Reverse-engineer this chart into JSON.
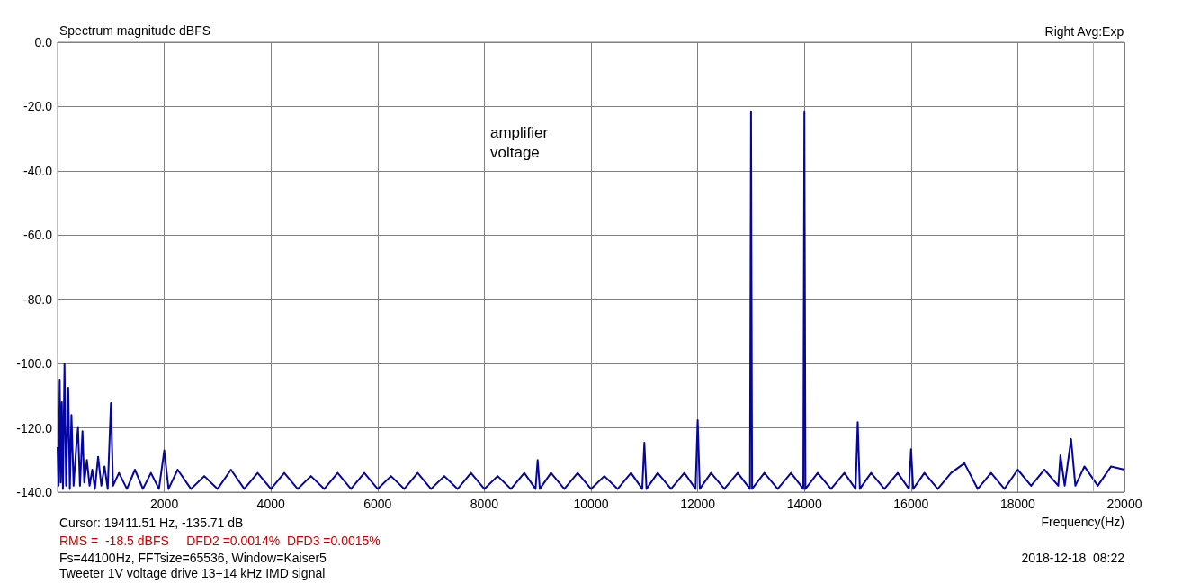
{
  "chart_data": {
    "type": "line",
    "ylabel": "Spectrum magnitude dBFS",
    "xlabel": "Frequency(Hz)",
    "annotations": [
      "Right Avg:Exp",
      "amplifier\nvoltage",
      "Cursor: 19411.51 Hz, -135.71 dB",
      "RMS =  -18.5 dBFS     DFD2 =0.0014%  DFD3 =0.0015%",
      "Fs=44100Hz, FFTsize=65536, Window=Kaiser5",
      "Tweeter 1V voltage drive 13+14 kHz IMD signal",
      "2018-12-18  08:22"
    ],
    "x": [
      0,
      20,
      40,
      60,
      80,
      100,
      130,
      160,
      200,
      230,
      260,
      300,
      350,
      383,
      420,
      467,
      500,
      550,
      600,
      650,
      700,
      760,
      820,
      880,
      940,
      1000,
      1040,
      1150,
      1300,
      1450,
      1600,
      1750,
      1900,
      2000,
      2080,
      2250,
      2500,
      2750,
      3000,
      3250,
      3500,
      3750,
      4000,
      4250,
      4500,
      4750,
      5000,
      5250,
      5500,
      5750,
      6000,
      6250,
      6500,
      6750,
      7000,
      7250,
      7500,
      7750,
      8000,
      8250,
      8500,
      8750,
      8960,
      9000,
      9040,
      9250,
      9500,
      9750,
      10000,
      10250,
      10500,
      10750,
      10960,
      11000,
      11040,
      11250,
      11500,
      11750,
      11960,
      12000,
      12040,
      12250,
      12500,
      12750,
      12980,
      13000,
      13020,
      13250,
      13500,
      13750,
      13980,
      14000,
      14020,
      14250,
      14500,
      14750,
      14960,
      15000,
      15040,
      15250,
      15500,
      15750,
      15960,
      16000,
      16040,
      16250,
      16500,
      16750,
      17000,
      17250,
      17500,
      17750,
      18000,
      18250,
      18500,
      18760,
      18800,
      18880,
      19000,
      19080,
      19250,
      19500,
      19750,
      20000
    ],
    "series": [
      {
        "color": "#0505a0",
        "values": [
          -126,
          -138,
          -105,
          -137,
          -112,
          -139,
          -100,
          -138,
          -107.5,
          -139,
          -116,
          -138,
          -126,
          -120,
          -138,
          -121,
          -137,
          -130,
          -138,
          -133,
          -139,
          -129,
          -138,
          -132,
          -139,
          -112.3,
          -138,
          -134,
          -139,
          -133,
          -139,
          -134,
          -139,
          -127,
          -139,
          -133,
          -139,
          -135,
          -139,
          -133,
          -139,
          -134,
          -139,
          -134,
          -139,
          -135,
          -139,
          -134,
          -139,
          -134,
          -139,
          -135,
          -139,
          -134,
          -139,
          -135,
          -139,
          -134,
          -139,
          -135,
          -139,
          -134,
          -139,
          -130,
          -139,
          -134,
          -139,
          -134,
          -139,
          -135,
          -139,
          -134,
          -139,
          -124.6,
          -139,
          -134,
          -139,
          -134,
          -139,
          -117.6,
          -139,
          -134,
          -139,
          -134,
          -139,
          -21.5,
          -139,
          -134,
          -139,
          -134,
          -139,
          -21.5,
          -139,
          -134,
          -139,
          -134,
          -139,
          -118.2,
          -139,
          -134,
          -139,
          -134,
          -139,
          -126.6,
          -139,
          -134,
          -139,
          -134,
          -131,
          -139,
          -134,
          -139,
          -133,
          -138,
          -133,
          -138,
          -128.5,
          -138,
          -123.5,
          -138,
          -132,
          -138,
          -132,
          -133
        ]
      }
    ],
    "xlim": [
      0,
      20000
    ],
    "xticks": [
      2000,
      4000,
      6000,
      8000,
      10000,
      12000,
      14000,
      16000,
      18000,
      20000
    ],
    "ylim": [
      -140,
      0
    ],
    "yticks": [
      {
        "value": -140,
        "label": "-140.0"
      },
      {
        "value": -120,
        "label": "-120.0"
      },
      {
        "value": -100,
        "label": "-100.0"
      },
      {
        "value": -80,
        "label": "-80.0"
      },
      {
        "value": -60,
        "label": "-60.0"
      },
      {
        "value": -40,
        "label": "-40.0"
      },
      {
        "value": -20,
        "label": "-20.0"
      },
      {
        "value": 0,
        "label": "0.0"
      }
    ],
    "ref_lines": [
      {
        "axis": "x",
        "value": 19411.51,
        "color": "#c8c800"
      }
    ],
    "grid": true,
    "marker": "none",
    "line_style": "solid"
  }
}
